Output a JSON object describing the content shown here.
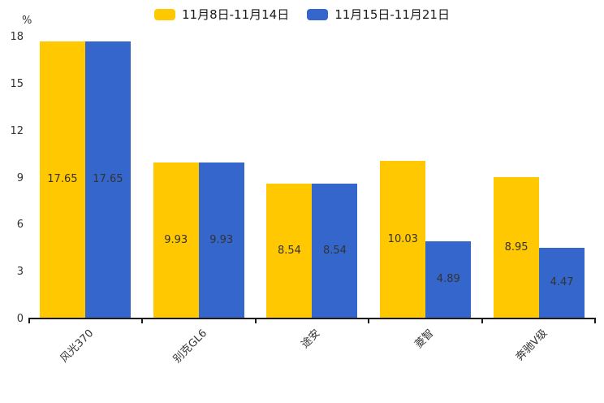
{
  "chart_data": {
    "type": "bar",
    "title": "",
    "xlabel": "",
    "ylabel": "%",
    "ylim": [
      0,
      18
    ],
    "yticks": [
      0,
      3,
      6,
      9,
      12,
      15,
      18
    ],
    "grid": false,
    "legend_position": "top",
    "value_labels": "inside-center",
    "categories": [
      "风光370",
      "别克GL6",
      "途安",
      "菱智",
      "奔驰V级"
    ],
    "series": [
      {
        "name": "11月8日-11月14日",
        "color": "#FFC800",
        "values": [
          17.65,
          9.93,
          8.54,
          10.03,
          8.95
        ]
      },
      {
        "name": "11月15日-11月21日",
        "color": "#3566CC",
        "values": [
          17.65,
          9.93,
          8.54,
          4.89,
          4.47
        ]
      }
    ]
  },
  "colors": {
    "axis": "#1a1a1a",
    "label_text": "#333333",
    "legend_text": "#1a1a1a",
    "background": "#ffffff"
  }
}
